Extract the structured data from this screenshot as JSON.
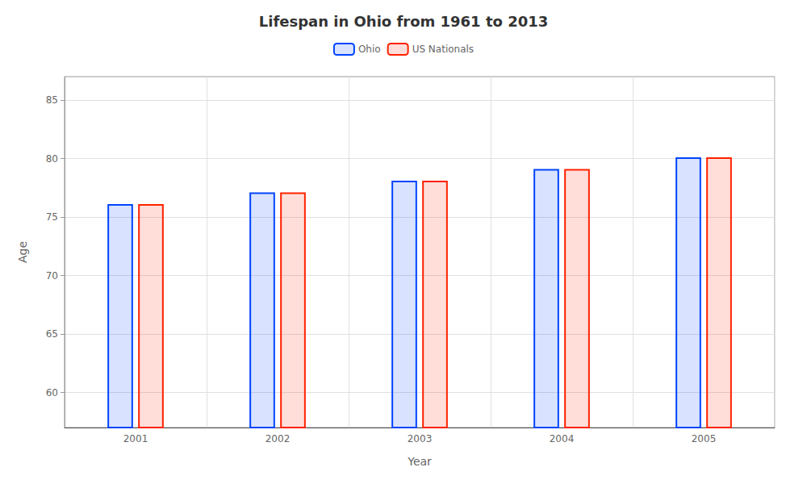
{
  "chart_data": {
    "type": "bar",
    "title": "Lifespan in Ohio from 1961 to 2013",
    "x_label": "Year",
    "y_label": "Age",
    "categories": [
      "2001",
      "2002",
      "2003",
      "2004",
      "2005"
    ],
    "series": [
      {
        "name": "Ohio",
        "color": "#0044ff",
        "values": [
          76.1,
          77.1,
          78.1,
          79.1,
          80.1
        ]
      },
      {
        "name": "US Nationals",
        "color": "#ff2200",
        "values": [
          76.1,
          77.1,
          78.1,
          79.1,
          80.1
        ]
      }
    ],
    "ylim": [
      57,
      87
    ],
    "yticks": [
      60,
      65,
      70,
      75,
      80,
      85
    ],
    "grid": true,
    "legend": "top"
  }
}
